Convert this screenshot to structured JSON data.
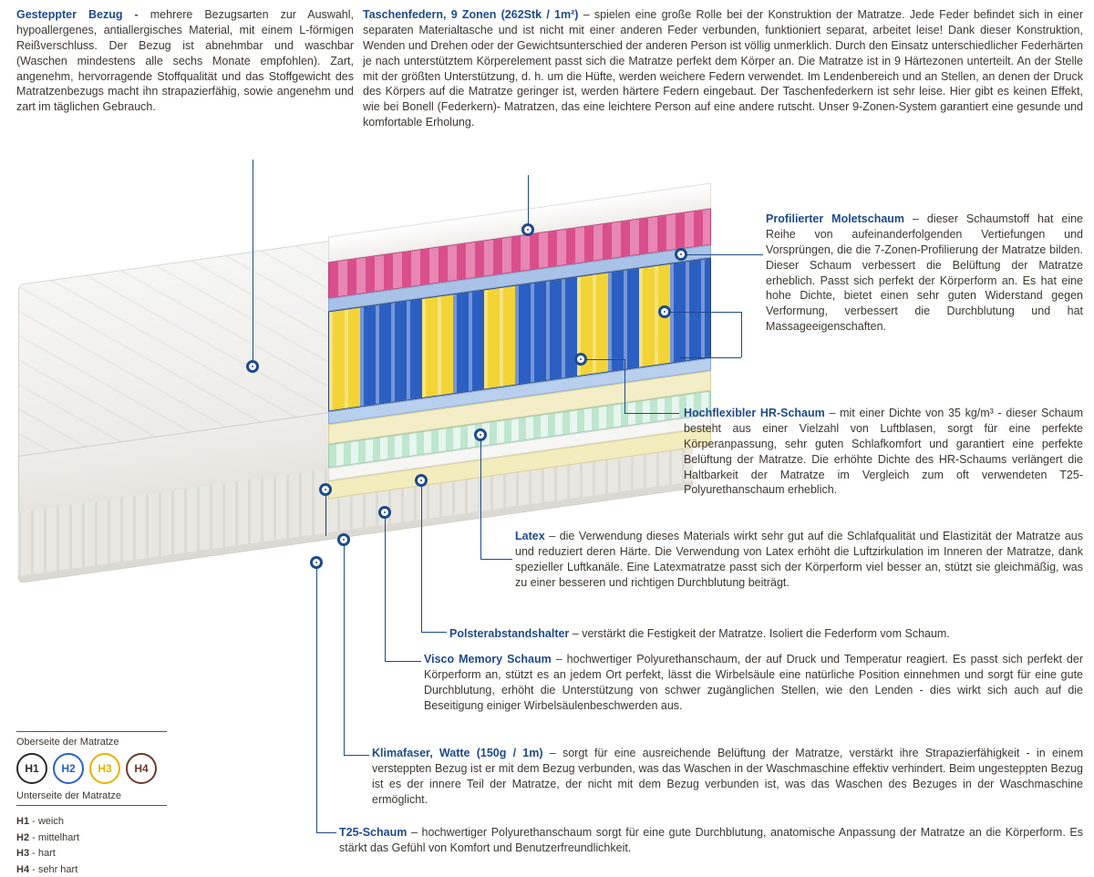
{
  "texts": {
    "cover": {
      "title": "Gesteppter Bezug - ",
      "body": "mehrere Bezugsarten zur Auswahl, hypoallergenes, antiallergisches Material, mit einem L-förmigen Reißverschluss. Der Bezug ist abnehmbar und waschbar (Waschen mindestens alle sechs Monate empfohlen). Zart, angenehm, hervorragende Stoffqualität und das Stoffgewicht des Matratzenbezugs macht ihn strapazierfähig, sowie angenehm und zart im täglichen Gebrauch."
    },
    "springs": {
      "title": "Taschenfedern, 9 Zonen (262Stk / 1m²) ",
      "body": "– spielen eine große Rolle bei der Konstruktion der Matratze. Jede Feder befindet sich in einer separaten Materialtasche und ist nicht mit einer anderen Feder verbunden, funktioniert separat, arbeitet leise! Dank dieser Konstruktion, Wenden und Drehen oder der Gewichtsunterschied der anderen Person ist völlig unmerklich. Durch den Einsatz unterschiedlicher Federhärten je nach unterstütztem Körperelement passt sich die Matratze perfekt dem Körper an. Die Matratze ist in 9 Härtezonen unterteilt. An der Stelle mit der größten Unterstützung, d. h. um die Hüfte, werden weichere Federn verwendet. Im Lendenbereich und an Stellen, an denen der Druck des Körpers auf die Matratze geringer ist, werden härtere Federn eingebaut. Der Taschenfederkern ist sehr leise. Hier gibt es keinen Effekt, wie bei Bonell (Federkern)- Matratzen, das eine leichtere Person auf eine andere rutscht. Unser 9-Zonen-System garantiert eine gesunde und komfortable Erholung."
    },
    "molet": {
      "title": "Profilierter Moletschaum ",
      "body": "– dieser Schaumstoff hat eine Reihe von aufeinanderfolgenden Vertiefungen und Vorsprüngen, die die 7-Zonen-Profilierung der Matratze bilden. Dieser Schaum verbessert die Belüftung der Matratze erheblich. Passt sich perfekt der Körperform an. Es hat eine hohe Dichte, bietet einen sehr guten Widerstand gegen Verformung, verbessert die Durchblutung und hat Massageeigenschaften."
    },
    "hr": {
      "title": "Hochflexibler HR-Schaum ",
      "body": "– mit einer Dichte von 35 kg/m³ - dieser Schaum besteht aus einer Vielzahl von Luftblasen, sorgt für eine perfekte Körperanpassung, sehr guten Schlafkomfort und garantiert eine perfekte Belüftung der Matratze. Die erhöhte Dichte des HR-Schaums verlängert die Haltbarkeit der Matratze im Vergleich zum oft verwendeten T25-Polyurethanschaum erheblich."
    },
    "latex": {
      "title": "Latex ",
      "body": "– die Verwendung dieses Materials wirkt sehr gut auf die Schlafqualität und Elastizität der Matratze aus und reduziert deren Härte. Die Verwendung von Latex erhöht die Luftzirkulation im Inneren der Matratze, dank spezieller Luftkanäle. Eine Latexmatratze passt sich der Körperform viel besser an, stützt sie gleichmäßig, was zu einer besseren und richtigen Durchblutung beiträgt."
    },
    "spacer": {
      "title": "Polsterabstandshalter ",
      "body": "– verstärkt die Festigkeit der Matratze. Isoliert die Federform vom Schaum."
    },
    "visco": {
      "title": "Visco Memory Schaum ",
      "body": "– hochwertiger Polyurethanschaum, der auf Druck und Temperatur reagiert. Es passt sich perfekt der Körperform an, stützt es an jedem Ort perfekt, lässt die Wirbelsäule eine natürliche Position einnehmen und sorgt für eine gute Durchblutung, erhöht die Unterstützung von schwer zugänglichen Stellen, wie den Lenden - dies wirkt sich auch auf die Beseitigung einiger Wirbelsäulenbeschwerden aus."
    },
    "klima": {
      "title": "Klimafaser, Watte (150g / 1m) ",
      "body": "– sorgt für eine ausreichende Belüftung der Matratze, verstärkt ihre Strapazierfähigkeit - in einem versteppten Bezug ist er mit dem Bezug verbunden, was das Waschen in der Waschmaschine effektiv verhindert. Beim ungesteppten Bezug ist es der innere Teil der Matratze, der nicht mit dem Bezug verbunden ist, was das Waschen des Bezuges in der Waschmaschine ermöglicht."
    },
    "t25": {
      "title": "T25-Schaum ",
      "body": "– hochwertiger Polyurethanschaum sorgt für eine gute Durchblutung, anatomische Anpassung der Matratze an die Körperform. Es stärkt das Gefühl von Komfort und Benutzerfreundlichkeit."
    }
  },
  "hardness": {
    "top_label": "Oberseite der Matratze",
    "bottom_label": "Unterseite der Matratze",
    "circles": [
      {
        "label": "H1",
        "color": "#2b2b2b"
      },
      {
        "label": "H2",
        "color": "#2b5fc2"
      },
      {
        "label": "H3",
        "color": "#e6b100"
      },
      {
        "label": "H4",
        "color": "#6b3a2b"
      }
    ],
    "legend": [
      {
        "code": "H1",
        "txt": " - weich"
      },
      {
        "code": "H2",
        "txt": " - mittelhart"
      },
      {
        "code": "H3",
        "txt": " - hart"
      },
      {
        "code": "H4",
        "txt": " - sehr hart"
      }
    ]
  },
  "colors": {
    "heading": "#1e4a8a",
    "pink_foam": "#d94f8c",
    "spring_blue": "#2b5fc2",
    "spring_yellow": "#f2d437",
    "mint": "#bfe6cf",
    "cream": "#f4eec8"
  }
}
